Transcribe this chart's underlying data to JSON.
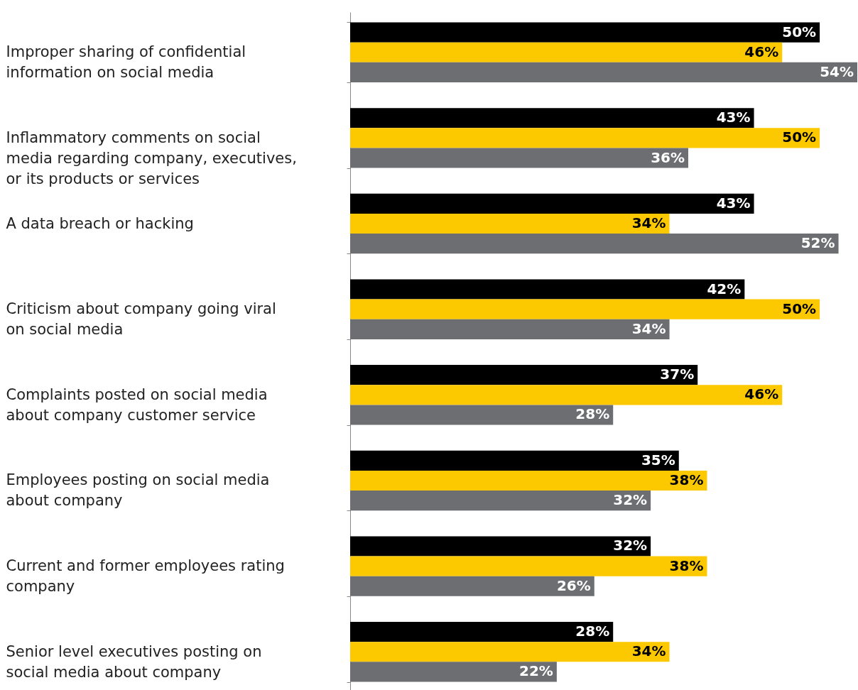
{
  "chart_data": {
    "type": "bar",
    "orientation": "horizontal",
    "tick_labels": "y",
    "categories": [
      "Improper sharing of confidential information on social media",
      "Inflammatory comments on social media regarding company, executives, or its products or services",
      "A data breach or hacking",
      "Criticism about company going viral on social media",
      "Complaints posted on social media about company customer service",
      "Employees posting on social media about company",
      "Current and former employees rating company",
      "Senior level executives posting on social media about company"
    ],
    "series": [
      {
        "color": "#000000",
        "values": [
          50,
          43,
          43,
          42,
          37,
          35,
          32,
          28
        ],
        "value_labels": [
          "50%",
          "43%",
          "43%",
          "42%",
          "37%",
          "35%",
          "32%",
          "28%"
        ]
      },
      {
        "color": "#fcc900",
        "values": [
          46,
          50,
          34,
          50,
          46,
          38,
          38,
          34
        ],
        "value_labels": [
          "46%",
          "50%",
          "34%",
          "50%",
          "46%",
          "38%",
          "38%",
          "34%"
        ]
      },
      {
        "color": "#6d6e71",
        "values": [
          54,
          36,
          52,
          34,
          28,
          32,
          26,
          22
        ],
        "value_labels": [
          "54%",
          "36%",
          "52%",
          "34%",
          "28%",
          "32%",
          "26%",
          "22%"
        ]
      }
    ]
  }
}
